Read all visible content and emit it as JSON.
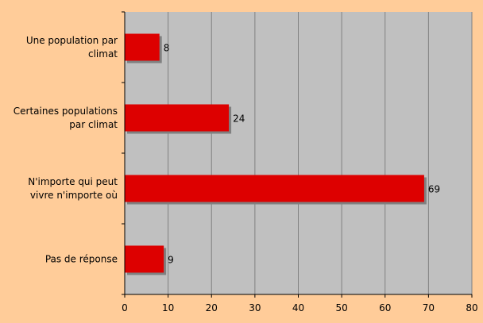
{
  "chart_data": {
    "type": "bar",
    "orientation": "horizontal",
    "categories": [
      [
        "Une population par",
        "climat"
      ],
      [
        "Certaines populations",
        "par climat"
      ],
      [
        "N'importe qui peut",
        "vivre n'importe où"
      ],
      [
        "Pas de réponse"
      ]
    ],
    "values": [
      8,
      24,
      69,
      9
    ],
    "data_labels": [
      "8",
      "24",
      "69",
      "9"
    ],
    "xlim": [
      0,
      80
    ],
    "ticks": [
      0,
      10,
      20,
      30,
      40,
      50,
      60,
      70,
      80
    ],
    "tick_labels": [
      "0",
      "10",
      "20",
      "30",
      "40",
      "50",
      "60",
      "70",
      "80"
    ],
    "grid": "vertical",
    "legend": "none",
    "title": "",
    "xlabel": "",
    "ylabel": ""
  },
  "colors": {
    "background": "#ffcc99",
    "plot_area": "#c0c0c0",
    "bar": "#dd0000",
    "bar_shadow": "#808080",
    "gridline": "#808080"
  }
}
